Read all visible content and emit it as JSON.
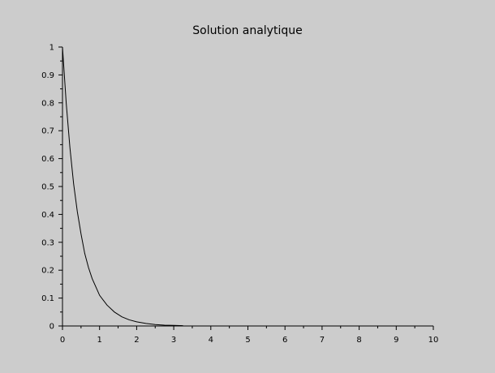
{
  "chart_data": {
    "type": "line",
    "title": "Solution analytique",
    "xlabel": "",
    "ylabel": "",
    "xlim": [
      0,
      10
    ],
    "ylim": [
      0,
      1
    ],
    "x_ticks": [
      "0",
      "1",
      "2",
      "3",
      "4",
      "5",
      "6",
      "7",
      "8",
      "9",
      "10"
    ],
    "y_ticks": [
      "0",
      "0.1",
      "0.2",
      "0.3",
      "0.4",
      "0.5",
      "0.6",
      "0.7",
      "0.8",
      "0.9",
      "1"
    ],
    "grid": false,
    "background_color": "#cccccc",
    "line_color": "#000000",
    "series": [
      {
        "x": [
          0,
          0.1,
          0.2,
          0.3,
          0.4,
          0.5,
          0.6,
          0.7,
          0.8,
          0.9,
          1.0,
          1.2,
          1.4,
          1.6,
          1.8,
          2.0,
          2.25,
          2.5,
          2.75,
          3.0,
          3.25
        ],
        "values": [
          1.0,
          0.8,
          0.64,
          0.51,
          0.41,
          0.33,
          0.26,
          0.21,
          0.17,
          0.14,
          0.11,
          0.075,
          0.05,
          0.033,
          0.022,
          0.015,
          0.009,
          0.005,
          0.003,
          0.002,
          0.001
        ]
      }
    ]
  }
}
